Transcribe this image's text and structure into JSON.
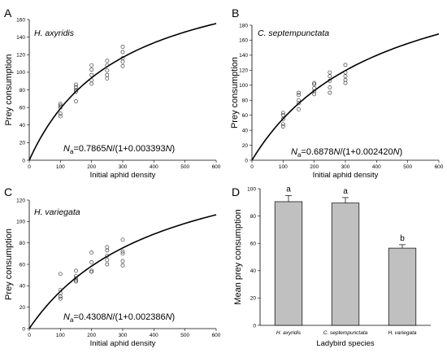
{
  "chart_data": [
    {
      "type": "scatter",
      "panel_letter": "A",
      "species_label": "H. axyridis",
      "equation_label": "Na=0.7865N/(1+0.003393N)",
      "equation_parts": [
        "N",
        "a",
        "=0.7865",
        "N",
        "/(1+0.003393",
        "N",
        ")"
      ],
      "xlabel": "Initial aphid density",
      "ylabel": "Prey consumption",
      "xlim": [
        0,
        600
      ],
      "ylim": [
        0,
        160
      ],
      "xticks": [
        0,
        100,
        200,
        300,
        400,
        500,
        600
      ],
      "yticks": [
        0,
        20,
        40,
        60,
        80,
        100,
        120,
        140,
        160
      ],
      "curve": {
        "a": 0.7865,
        "b": 0.003393
      },
      "points": [
        [
          100,
          50
        ],
        [
          100,
          53
        ],
        [
          100,
          60
        ],
        [
          100,
          62
        ],
        [
          100,
          64
        ],
        [
          150,
          67
        ],
        [
          150,
          78
        ],
        [
          150,
          80
        ],
        [
          150,
          83
        ],
        [
          150,
          86
        ],
        [
          200,
          87
        ],
        [
          200,
          91
        ],
        [
          200,
          97
        ],
        [
          200,
          103
        ],
        [
          200,
          108
        ],
        [
          250,
          93
        ],
        [
          250,
          97
        ],
        [
          250,
          102
        ],
        [
          250,
          108
        ],
        [
          250,
          113
        ],
        [
          300,
          107
        ],
        [
          300,
          112
        ],
        [
          300,
          116
        ],
        [
          300,
          123
        ],
        [
          300,
          129
        ]
      ]
    },
    {
      "type": "scatter",
      "panel_letter": "B",
      "species_label": "C. septempunctata",
      "equation_label": "Na=0.6878N/(1+0.002420N)",
      "equation_parts": [
        "N",
        "a",
        "=0.6878",
        "N",
        "/(1+0.002420",
        "N",
        ")"
      ],
      "xlabel": "Initial aphid density",
      "ylabel": "Prey consumption",
      "xlim": [
        0,
        600
      ],
      "ylim": [
        0,
        180
      ],
      "xticks": [
        0,
        100,
        200,
        300,
        400,
        500,
        600
      ],
      "yticks": [
        0,
        20,
        40,
        60,
        80,
        100,
        120,
        140,
        160,
        180
      ],
      "curve": {
        "a": 0.6878,
        "b": 0.00242
      },
      "points": [
        [
          100,
          45
        ],
        [
          100,
          48
        ],
        [
          100,
          55
        ],
        [
          100,
          60
        ],
        [
          100,
          63
        ],
        [
          150,
          68
        ],
        [
          150,
          76
        ],
        [
          150,
          80
        ],
        [
          150,
          87
        ],
        [
          150,
          90
        ],
        [
          200,
          88
        ],
        [
          200,
          92
        ],
        [
          200,
          96
        ],
        [
          200,
          101
        ],
        [
          200,
          103
        ],
        [
          250,
          90
        ],
        [
          250,
          97
        ],
        [
          250,
          106
        ],
        [
          250,
          112
        ],
        [
          250,
          117
        ],
        [
          300,
          103
        ],
        [
          300,
          107
        ],
        [
          300,
          112
        ],
        [
          300,
          117
        ],
        [
          300,
          127
        ]
      ]
    },
    {
      "type": "scatter",
      "panel_letter": "C",
      "species_label": "H. variegata",
      "equation_label": "Na=0.4308N/(1+0.002386N)",
      "equation_parts": [
        "N",
        "a",
        "=0.4308",
        "N",
        "/(1+0.002386",
        "N",
        ")"
      ],
      "xlabel": "Initial aphid density",
      "ylabel": "Prey consumption",
      "xlim": [
        0,
        600
      ],
      "ylim": [
        0,
        120
      ],
      "xticks": [
        0,
        100,
        200,
        300,
        400,
        500,
        600
      ],
      "yticks": [
        0,
        20,
        40,
        60,
        80,
        100,
        120
      ],
      "curve": {
        "a": 0.4308,
        "b": 0.002386
      },
      "points": [
        [
          100,
          28
        ],
        [
          100,
          30
        ],
        [
          100,
          33
        ],
        [
          100,
          36
        ],
        [
          100,
          51
        ],
        [
          150,
          44
        ],
        [
          150,
          45
        ],
        [
          150,
          47
        ],
        [
          150,
          49
        ],
        [
          150,
          54
        ],
        [
          200,
          53
        ],
        [
          200,
          54
        ],
        [
          200,
          62
        ],
        [
          200,
          71
        ],
        [
          250,
          60
        ],
        [
          250,
          64
        ],
        [
          250,
          68
        ],
        [
          250,
          73
        ],
        [
          250,
          76
        ],
        [
          300,
          59
        ],
        [
          300,
          63
        ],
        [
          300,
          70
        ],
        [
          300,
          72
        ],
        [
          300,
          83
        ]
      ]
    },
    {
      "type": "bar",
      "panel_letter": "D",
      "categories": [
        "H. axyridis",
        "C. septempunctata",
        "H. variegata"
      ],
      "values": [
        90.5,
        89.5,
        56.5
      ],
      "errors": [
        4.5,
        4,
        2.5
      ],
      "significance": [
        "a",
        "a",
        "b"
      ],
      "xlabel": "Ladybird species",
      "ylabel": "Mean prey consumption",
      "ylim": [
        0,
        100
      ],
      "yticks": [
        0,
        20,
        40,
        60,
        80,
        100
      ],
      "bar_color": "#c0c0c0"
    }
  ]
}
